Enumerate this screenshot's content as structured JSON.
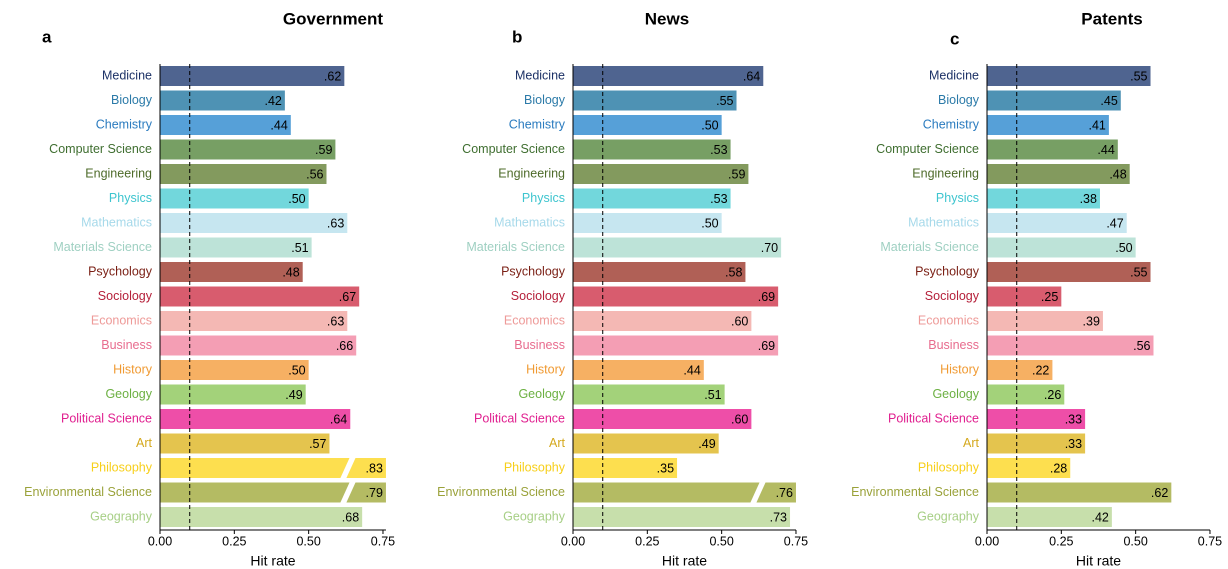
{
  "chart_data": [
    {
      "type": "bar",
      "orientation": "horizontal",
      "panel": "a",
      "title": "Government",
      "xlabel": "Hit rate",
      "categories": [
        "Medicine",
        "Biology",
        "Chemistry",
        "Computer Science",
        "Engineering",
        "Physics",
        "Mathematics",
        "Materials Science",
        "Psychology",
        "Sociology",
        "Economics",
        "Business",
        "History",
        "Geology",
        "Political Science",
        "Art",
        "Philosophy",
        "Environmental Science",
        "Geography"
      ],
      "values": [
        0.62,
        0.42,
        0.44,
        0.59,
        0.56,
        0.5,
        0.63,
        0.51,
        0.48,
        0.67,
        0.63,
        0.66,
        0.5,
        0.49,
        0.64,
        0.57,
        0.83,
        0.79,
        0.68
      ],
      "value_labels": [
        ".62",
        ".42",
        ".44",
        ".59",
        ".56",
        ".50",
        ".63",
        ".51",
        ".48",
        ".67",
        ".63",
        ".66",
        ".50",
        ".49",
        ".64",
        ".57",
        ".83",
        ".79",
        ".68"
      ],
      "colors": [
        "#4f6490",
        "#4e92b4",
        "#56a0d8",
        "#779f64",
        "#839a5e",
        "#72d7dc",
        "#c6e6f0",
        "#bde3d8",
        "#b06056",
        "#d85c6e",
        "#f4b8b4",
        "#f49eb4",
        "#f6b063",
        "#a3d27a",
        "#ee4ea8",
        "#e4c44e",
        "#fddf4f",
        "#b4bb63",
        "#c7dfab"
      ],
      "label_colors": [
        "#1c3166",
        "#2b7aa8",
        "#2a7bbf",
        "#3f6e30",
        "#4e6b2a",
        "#3ec5cf",
        "#a6d9ea",
        "#9fd0c2",
        "#7a1f14",
        "#b5203a",
        "#ee9a98",
        "#e86c8e",
        "#f09a32",
        "#6cb042",
        "#e01f8f",
        "#d4a81c",
        "#f7cf1a",
        "#9aa23a",
        "#a7cf86"
      ],
      "xlim": [
        0,
        0.76
      ],
      "xticks": [
        {
          "value": 0,
          "label": "0.00"
        },
        {
          "value": 0.25,
          "label": "0.25"
        },
        {
          "value": 0.5,
          "label": "0.50"
        },
        {
          "value": 0.75,
          "label": "0.75"
        }
      ],
      "reference_line": 0.1
    },
    {
      "type": "bar",
      "orientation": "horizontal",
      "panel": "b",
      "title": "News",
      "xlabel": "Hit rate",
      "categories": [
        "Medicine",
        "Biology",
        "Chemistry",
        "Computer Science",
        "Engineering",
        "Physics",
        "Mathematics",
        "Materials Science",
        "Psychology",
        "Sociology",
        "Economics",
        "Business",
        "History",
        "Geology",
        "Political Science",
        "Art",
        "Philosophy",
        "Environmental Science",
        "Geography"
      ],
      "values": [
        0.64,
        0.55,
        0.5,
        0.53,
        0.59,
        0.53,
        0.5,
        0.7,
        0.58,
        0.69,
        0.6,
        0.69,
        0.44,
        0.51,
        0.6,
        0.49,
        0.35,
        0.76,
        0.73
      ],
      "value_labels": [
        ".64",
        ".55",
        ".50",
        ".53",
        ".59",
        ".53",
        ".50",
        ".70",
        ".58",
        ".69",
        ".60",
        ".69",
        ".44",
        ".51",
        ".60",
        ".49",
        ".35",
        ".76",
        ".73"
      ],
      "colors": [
        "#4f6490",
        "#4e92b4",
        "#56a0d8",
        "#779f64",
        "#839a5e",
        "#72d7dc",
        "#c6e6f0",
        "#bde3d8",
        "#b06056",
        "#d85c6e",
        "#f4b8b4",
        "#f49eb4",
        "#f6b063",
        "#a3d27a",
        "#ee4ea8",
        "#e4c44e",
        "#fddf4f",
        "#b4bb63",
        "#c7dfab"
      ],
      "label_colors": [
        "#1c3166",
        "#2b7aa8",
        "#2a7bbf",
        "#3f6e30",
        "#4e6b2a",
        "#3ec5cf",
        "#a6d9ea",
        "#9fd0c2",
        "#7a1f14",
        "#b5203a",
        "#ee9a98",
        "#e86c8e",
        "#f09a32",
        "#6cb042",
        "#e01f8f",
        "#d4a81c",
        "#f7cf1a",
        "#9aa23a",
        "#a7cf86"
      ],
      "xlim": [
        0,
        0.75
      ],
      "xticks": [
        {
          "value": 0,
          "label": "0.00"
        },
        {
          "value": 0.25,
          "label": "0.25"
        },
        {
          "value": 0.5,
          "label": "0.50"
        },
        {
          "value": 0.75,
          "label": "0.75"
        }
      ],
      "reference_line": 0.1
    },
    {
      "type": "bar",
      "orientation": "horizontal",
      "panel": "c",
      "title": "Patents",
      "xlabel": "Hit rate",
      "categories": [
        "Medicine",
        "Biology",
        "Chemistry",
        "Computer Science",
        "Engineering",
        "Physics",
        "Mathematics",
        "Materials Science",
        "Psychology",
        "Sociology",
        "Economics",
        "Business",
        "History",
        "Geology",
        "Political Science",
        "Art",
        "Philosophy",
        "Environmental Science",
        "Geography"
      ],
      "values": [
        0.55,
        0.45,
        0.41,
        0.44,
        0.48,
        0.38,
        0.47,
        0.5,
        0.55,
        0.25,
        0.39,
        0.56,
        0.22,
        0.26,
        0.33,
        0.33,
        0.28,
        0.62,
        0.42
      ],
      "value_labels": [
        ".55",
        ".45",
        ".41",
        ".44",
        ".48",
        ".38",
        ".47",
        ".50",
        ".55",
        ".25",
        ".39",
        ".56",
        ".22",
        ".26",
        ".33",
        ".33",
        ".28",
        ".62",
        ".42"
      ],
      "colors": [
        "#4f6490",
        "#4e92b4",
        "#56a0d8",
        "#779f64",
        "#839a5e",
        "#72d7dc",
        "#c6e6f0",
        "#bde3d8",
        "#b06056",
        "#d85c6e",
        "#f4b8b4",
        "#f49eb4",
        "#f6b063",
        "#a3d27a",
        "#ee4ea8",
        "#e4c44e",
        "#fddf4f",
        "#b4bb63",
        "#c7dfab"
      ],
      "label_colors": [
        "#1c3166",
        "#2b7aa8",
        "#2a7bbf",
        "#3f6e30",
        "#4e6b2a",
        "#3ec5cf",
        "#a6d9ea",
        "#9fd0c2",
        "#7a1f14",
        "#b5203a",
        "#ee9a98",
        "#e86c8e",
        "#f09a32",
        "#6cb042",
        "#e01f8f",
        "#d4a81c",
        "#f7cf1a",
        "#9aa23a",
        "#a7cf86"
      ],
      "xlim": [
        0,
        0.75
      ],
      "xticks": [
        {
          "value": 0,
          "label": "0.00"
        },
        {
          "value": 0.25,
          "label": "0.25"
        },
        {
          "value": 0.5,
          "label": "0.50"
        },
        {
          "value": 0.75,
          "label": "0.75"
        }
      ],
      "reference_line": 0.1
    }
  ]
}
